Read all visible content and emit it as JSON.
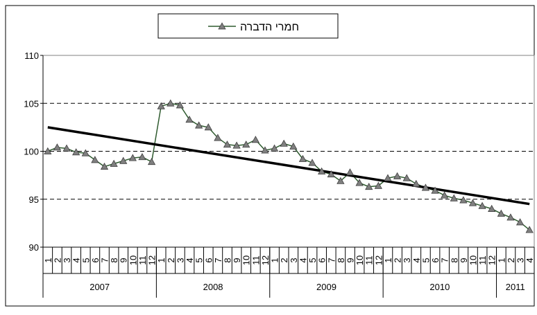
{
  "chart_data": {
    "type": "line",
    "categories": [
      "1",
      "2",
      "3",
      "4",
      "5",
      "6",
      "7",
      "8",
      "9",
      "10",
      "11",
      "12",
      "1",
      "2",
      "3",
      "4",
      "5",
      "6",
      "7",
      "8",
      "9",
      "10",
      "11",
      "12",
      "1",
      "2",
      "3",
      "4",
      "5",
      "6",
      "7",
      "8",
      "9",
      "10",
      "11",
      "12",
      "1",
      "2",
      "3",
      "4",
      "5",
      "6",
      "7",
      "8",
      "9",
      "10",
      "11",
      "12",
      "1",
      "2",
      "3",
      "4"
    ],
    "years": [
      "2007",
      "2008",
      "2009",
      "2010",
      "2011"
    ],
    "series": [
      {
        "name": "חמרי הדברה",
        "color": "#2e5a2e",
        "marker_color": "#7f7f7f",
        "values": [
          100.0,
          100.4,
          100.3,
          99.9,
          99.8,
          99.1,
          98.4,
          98.7,
          99.0,
          99.3,
          99.4,
          98.9,
          104.7,
          105.0,
          104.8,
          103.3,
          102.7,
          102.5,
          101.4,
          100.7,
          100.6,
          100.7,
          101.2,
          100.1,
          100.3,
          100.8,
          100.5,
          99.2,
          98.8,
          97.9,
          97.6,
          96.9,
          97.8,
          96.7,
          96.3,
          96.4,
          97.2,
          97.4,
          97.2,
          96.6,
          96.2,
          95.9,
          95.4,
          95.1,
          94.9,
          94.6,
          94.3,
          94.0,
          93.5,
          93.1,
          92.6,
          91.8
        ]
      }
    ],
    "trend": [
      102.5,
      94.5
    ],
    "trend_color": "#000000",
    "ylim": [
      90,
      110
    ],
    "yticks": [
      90,
      95,
      100,
      105,
      110
    ],
    "grid": true
  }
}
